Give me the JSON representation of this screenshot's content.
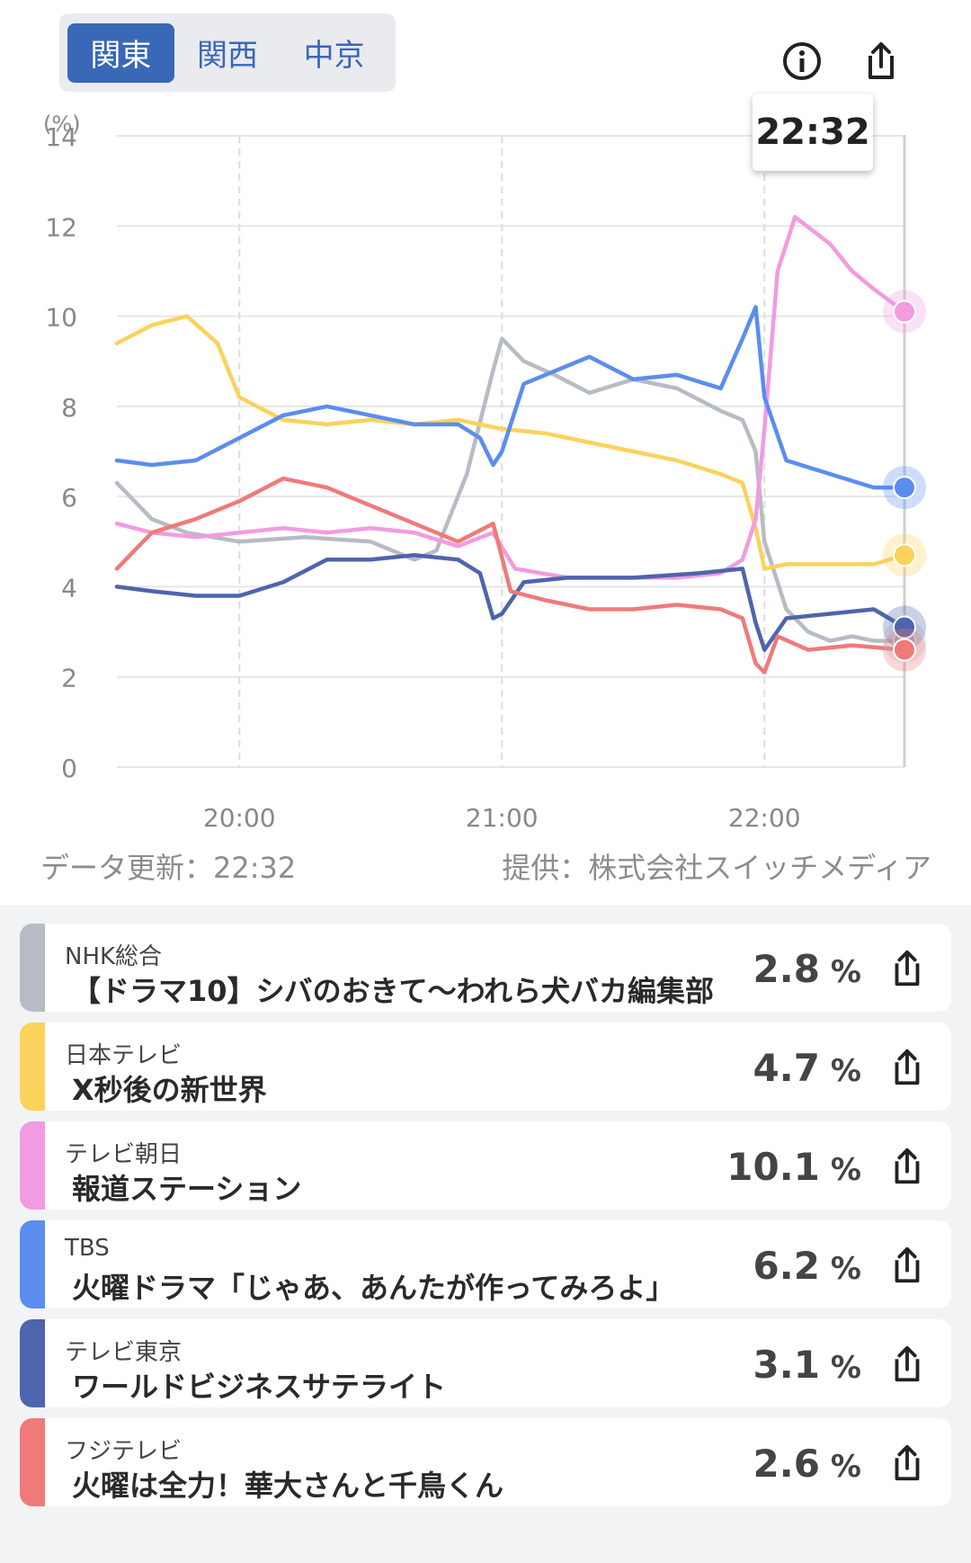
{
  "region_tabs": [
    {
      "label": "関東",
      "active": true
    },
    {
      "label": "関西",
      "active": false
    },
    {
      "label": "中京",
      "active": false
    }
  ],
  "icons": {
    "info": "info-circle-icon",
    "share": "share-upload-icon"
  },
  "current_time": "22:32",
  "footer": {
    "updated": "データ更新：22:32",
    "source": "提供：株式会社スイッチメディア"
  },
  "chart_data": {
    "type": "line",
    "ylabel": "(%)",
    "ylim": [
      0,
      14
    ],
    "y_ticks": [
      0,
      2,
      4,
      6,
      8,
      10,
      12,
      14
    ],
    "x_ticks": [
      "20:00",
      "21:00",
      "22:00"
    ],
    "x_range": [
      "19:32",
      "22:32"
    ],
    "grid": true,
    "series": [
      {
        "name": "NHK総合",
        "color": "#b7bcc4",
        "x": [
          "19:32",
          "19:40",
          "19:48",
          "20:00",
          "20:15",
          "20:30",
          "20:40",
          "20:45",
          "20:52",
          "20:58",
          "21:00",
          "21:05",
          "21:12",
          "21:20",
          "21:30",
          "21:40",
          "21:50",
          "21:55",
          "21:58",
          "22:00",
          "22:05",
          "22:10",
          "22:15",
          "22:20",
          "22:25",
          "22:32"
        ],
        "values": [
          6.3,
          5.5,
          5.2,
          5.0,
          5.1,
          5.0,
          4.6,
          4.8,
          6.5,
          8.8,
          9.5,
          9.0,
          8.7,
          8.3,
          8.6,
          8.4,
          7.9,
          7.7,
          7.0,
          5.0,
          3.5,
          3.0,
          2.8,
          2.9,
          2.8,
          2.8
        ]
      },
      {
        "name": "日本テレビ",
        "color": "#fbd25c",
        "x": [
          "19:32",
          "19:40",
          "19:48",
          "19:55",
          "20:00",
          "20:10",
          "20:20",
          "20:30",
          "20:40",
          "20:50",
          "21:00",
          "21:10",
          "21:20",
          "21:30",
          "21:40",
          "21:50",
          "21:55",
          "21:58",
          "22:00",
          "22:05",
          "22:15",
          "22:25",
          "22:32"
        ],
        "values": [
          9.4,
          9.8,
          10.0,
          9.4,
          8.2,
          7.7,
          7.6,
          7.7,
          7.6,
          7.7,
          7.5,
          7.4,
          7.2,
          7.0,
          6.8,
          6.5,
          6.3,
          5.3,
          4.4,
          4.5,
          4.5,
          4.5,
          4.7
        ]
      },
      {
        "name": "テレビ朝日",
        "color": "#f29be0",
        "x": [
          "19:32",
          "19:40",
          "19:50",
          "20:00",
          "20:10",
          "20:20",
          "20:30",
          "20:40",
          "20:50",
          "20:58",
          "21:03",
          "21:15",
          "21:30",
          "21:40",
          "21:50",
          "21:55",
          "21:58",
          "22:00",
          "22:03",
          "22:07",
          "22:15",
          "22:20",
          "22:25",
          "22:32"
        ],
        "values": [
          5.4,
          5.2,
          5.1,
          5.2,
          5.3,
          5.2,
          5.3,
          5.2,
          4.9,
          5.2,
          4.4,
          4.2,
          4.2,
          4.2,
          4.3,
          4.6,
          5.5,
          7.5,
          11.0,
          12.2,
          11.6,
          11.0,
          10.6,
          10.1
        ]
      },
      {
        "name": "TBS",
        "color": "#5b8def",
        "x": [
          "19:32",
          "19:40",
          "19:50",
          "20:00",
          "20:10",
          "20:20",
          "20:30",
          "20:40",
          "20:50",
          "20:55",
          "20:58",
          "21:00",
          "21:05",
          "21:15",
          "21:20",
          "21:30",
          "21:40",
          "21:50",
          "21:55",
          "21:58",
          "22:00",
          "22:05",
          "22:15",
          "22:25",
          "22:32"
        ],
        "values": [
          6.8,
          6.7,
          6.8,
          7.3,
          7.8,
          8.0,
          7.8,
          7.6,
          7.6,
          7.3,
          6.7,
          7.0,
          8.5,
          8.9,
          9.1,
          8.6,
          8.7,
          8.4,
          9.5,
          10.2,
          8.2,
          6.8,
          6.5,
          6.2,
          6.2
        ]
      },
      {
        "name": "テレビ東京",
        "color": "#4e64ad",
        "x": [
          "19:32",
          "19:40",
          "19:50",
          "20:00",
          "20:10",
          "20:20",
          "20:30",
          "20:40",
          "20:50",
          "20:55",
          "20:58",
          "21:00",
          "21:05",
          "21:15",
          "21:30",
          "21:45",
          "21:55",
          "21:58",
          "22:00",
          "22:05",
          "22:15",
          "22:25",
          "22:32"
        ],
        "values": [
          4.0,
          3.9,
          3.8,
          3.8,
          4.1,
          4.6,
          4.6,
          4.7,
          4.6,
          4.3,
          3.3,
          3.4,
          4.1,
          4.2,
          4.2,
          4.3,
          4.4,
          3.2,
          2.6,
          3.3,
          3.4,
          3.5,
          3.1
        ]
      },
      {
        "name": "フジテレビ",
        "color": "#f07a7a",
        "x": [
          "19:32",
          "19:40",
          "19:50",
          "20:00",
          "20:10",
          "20:20",
          "20:30",
          "20:40",
          "20:50",
          "20:58",
          "21:02",
          "21:10",
          "21:20",
          "21:30",
          "21:40",
          "21:50",
          "21:55",
          "21:58",
          "22:00",
          "22:03",
          "22:10",
          "22:20",
          "22:32"
        ],
        "values": [
          4.4,
          5.2,
          5.5,
          5.9,
          6.4,
          6.2,
          5.8,
          5.4,
          5.0,
          5.4,
          3.9,
          3.7,
          3.5,
          3.5,
          3.6,
          3.5,
          3.3,
          2.3,
          2.1,
          2.9,
          2.6,
          2.7,
          2.6
        ]
      }
    ]
  },
  "programs": [
    {
      "station": "NHK総合",
      "title": "【ドラマ10】シバのおきて〜われら犬バカ編集部",
      "rating": "2.8",
      "unit": "%",
      "color": "#b7bcc4"
    },
    {
      "station": "日本テレビ",
      "title": "X秒後の新世界",
      "rating": "4.7",
      "unit": "%",
      "color": "#fbd25c"
    },
    {
      "station": "テレビ朝日",
      "title": "報道ステーション",
      "rating": "10.1",
      "unit": "%",
      "color": "#f29be0"
    },
    {
      "station": "TBS",
      "title": "火曜ドラマ「じゃあ、あんたが作ってみろよ」",
      "rating": "6.2",
      "unit": "%",
      "color": "#5b8def"
    },
    {
      "station": "テレビ東京",
      "title": "ワールドビジネスサテライト",
      "rating": "3.1",
      "unit": "%",
      "color": "#4e64ad"
    },
    {
      "station": "フジテレビ",
      "title": "火曜は全力！華大さんと千鳥くん",
      "rating": "2.6",
      "unit": "%",
      "color": "#f07a7a"
    }
  ]
}
